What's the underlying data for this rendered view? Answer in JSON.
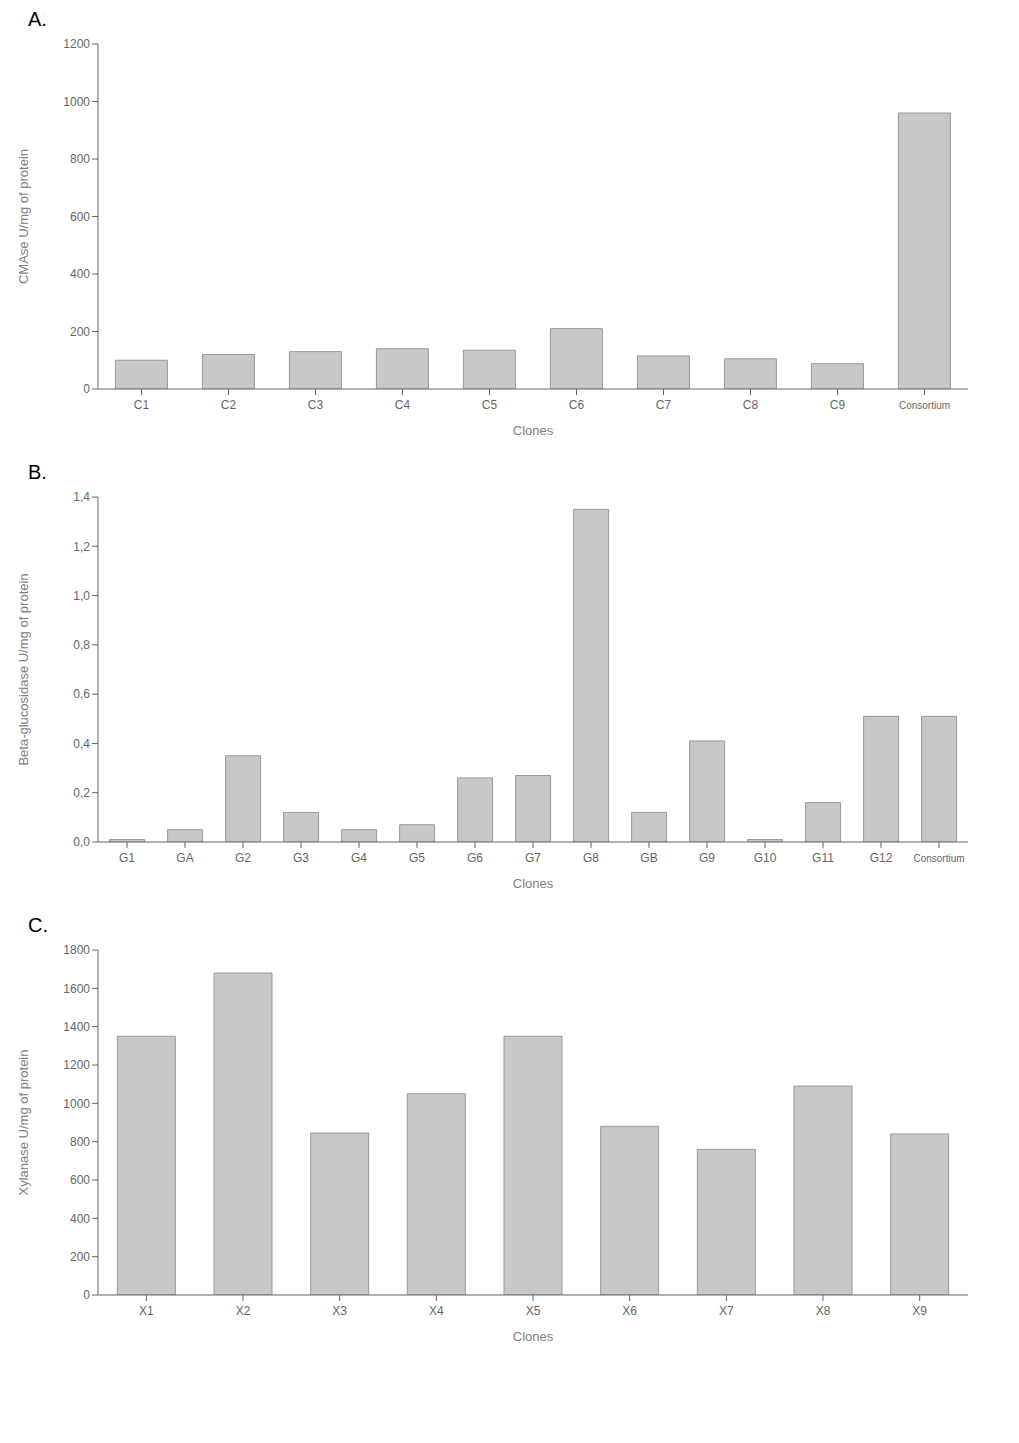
{
  "chart_data": [
    {
      "type": "bar",
      "title": "A.",
      "xlabel": "Clones",
      "ylabel": "CMAse U/mg of protein",
      "categories": [
        "C1",
        "C2",
        "C3",
        "C4",
        "C5",
        "C6",
        "C7",
        "C8",
        "C9",
        "Consortium"
      ],
      "values": [
        100,
        120,
        130,
        140,
        135,
        210,
        115,
        105,
        88,
        960
      ],
      "color": "#c8c8c8",
      "ylim": [
        0,
        1200
      ],
      "yticks": [
        0,
        200,
        400,
        600,
        800,
        1000,
        1200
      ],
      "grid": false
    },
    {
      "type": "bar",
      "title": "B.",
      "xlabel": "Clones",
      "ylabel": "Beta-glucosidase U/mg of protein",
      "categories": [
        "G1",
        "GA",
        "G2",
        "G3",
        "G4",
        "G5",
        "G6",
        "G7",
        "G8",
        "GB",
        "G9",
        "G10",
        "G11",
        "G12",
        "Consortium"
      ],
      "values": [
        0.01,
        0.05,
        0.35,
        0.12,
        0.05,
        0.07,
        0.26,
        0.27,
        1.35,
        0.12,
        0.41,
        0.01,
        0.16,
        0.51,
        0.51
      ],
      "color": "#c8c8c8",
      "ylim": [
        0,
        1.4
      ],
      "yticks": [
        {
          "value": 0.0,
          "label": "0,0"
        },
        {
          "value": 0.2,
          "label": "0,2"
        },
        {
          "value": 0.4,
          "label": "0,4"
        },
        {
          "value": 0.6,
          "label": "0,6"
        },
        {
          "value": 0.8,
          "label": "0,8"
        },
        {
          "value": 1.0,
          "label": "1,0"
        },
        {
          "value": 1.2,
          "label": "1,2"
        },
        {
          "value": 1.4,
          "label": "1,4"
        }
      ],
      "grid": false
    },
    {
      "type": "bar",
      "title": "C.",
      "xlabel": "Clones",
      "ylabel": "Xylanase U/mg of protein",
      "categories": [
        "X1",
        "X2",
        "X3",
        "X4",
        "X5",
        "X6",
        "X7",
        "X8",
        "X9"
      ],
      "values": [
        1350,
        1680,
        845,
        1050,
        1350,
        880,
        760,
        1090,
        840
      ],
      "color": "#c8c8c8",
      "ylim": [
        0,
        1800
      ],
      "yticks": [
        0,
        200,
        400,
        600,
        800,
        1000,
        1200,
        1400,
        1600,
        1800
      ],
      "grid": false
    }
  ]
}
